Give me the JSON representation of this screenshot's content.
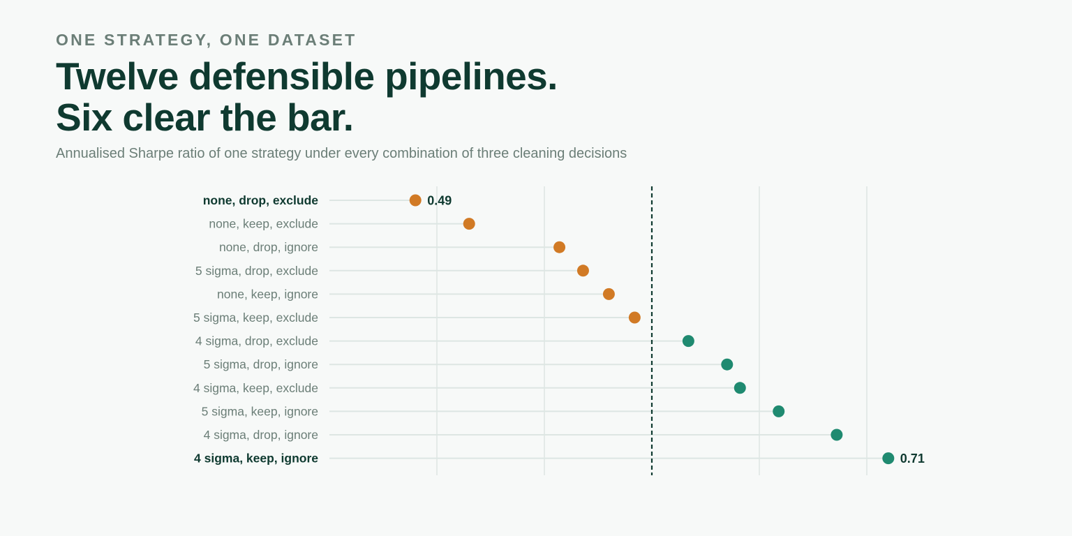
{
  "header": {
    "eyebrow": "ONE STRATEGY, ONE DATASET",
    "headline_line1": "Twelve defensible pipelines.",
    "headline_line2": "Six clear the bar.",
    "subtitle": "Annualised Sharpe ratio of one strategy under every combination of three cleaning decisions"
  },
  "colors": {
    "below_bar": "#d17a25",
    "above_bar": "#1f8a70",
    "threshold_line": "#0f3a30",
    "gridline": "#dde6e3",
    "stem": "#dde6e3"
  },
  "chart_data": {
    "type": "dot",
    "title": "",
    "xlabel": "",
    "ylabel": "",
    "xlim": [
      0.44,
      0.72
    ],
    "gridlines_at": [
      0.5,
      0.55,
      0.6,
      0.65,
      0.7
    ],
    "threshold": 0.6,
    "grid": true,
    "categories": [
      "none, drop, exclude",
      "none, keep, exclude",
      "none, drop, ignore",
      "5 sigma, drop, exclude",
      "none, keep, ignore",
      "5 sigma, keep, exclude",
      "4 sigma, drop, exclude",
      "5 sigma, drop, ignore",
      "4 sigma, keep, exclude",
      "5 sigma, keep, ignore",
      "4 sigma, drop, ignore",
      "4 sigma, keep, ignore"
    ],
    "values": [
      0.49,
      0.515,
      0.557,
      0.568,
      0.58,
      0.592,
      0.617,
      0.635,
      0.641,
      0.659,
      0.686,
      0.71
    ],
    "highlighted": [
      0,
      11
    ],
    "value_labels": {
      "0": "0.49",
      "11": "0.71"
    }
  }
}
